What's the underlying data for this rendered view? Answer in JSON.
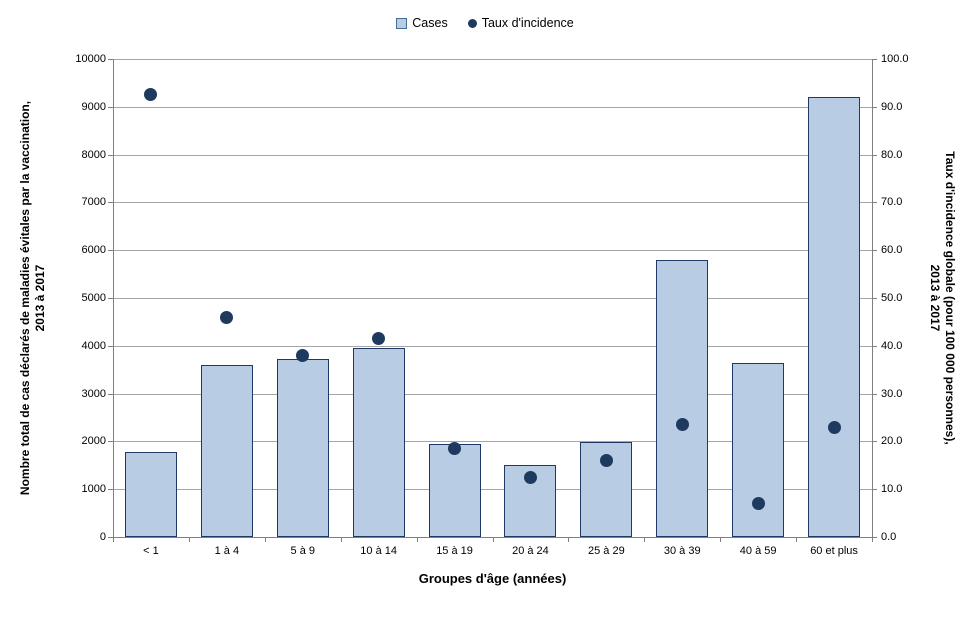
{
  "chart_data": {
    "type": "combo bar + scatter, dual y-axis",
    "categories": [
      "< 1",
      "1 à 4",
      "5 à 9",
      "10 à 14",
      "15 à 19",
      "20 à 24",
      "25 à 29",
      "30 à 39",
      "40 à 59",
      "60 et plus"
    ],
    "series": [
      {
        "name": "Cases",
        "type": "bar",
        "axis": "left",
        "values": [
          1780,
          3600,
          3720,
          3950,
          1940,
          1500,
          1980,
          5790,
          3640,
          9200
        ]
      },
      {
        "name": "Taux d'incidence",
        "type": "scatter",
        "axis": "right",
        "values": [
          92.5,
          46.0,
          38.0,
          41.5,
          18.5,
          12.5,
          16.0,
          23.5,
          7.0,
          23.0
        ]
      }
    ],
    "xlabel": "Groupes d'âge (années)",
    "ylabel_left_lines": [
      "Nombre total de cas déclarés de maladies évitales par la vaccination,",
      "2013 à 2017"
    ],
    "ylabel_right_lines": [
      "Taux d'incidence globale (pour 100 000 personnes),",
      "2013 à 2017"
    ],
    "left_axis": {
      "min": 0,
      "max": 10000,
      "ticks": [
        "0",
        "1000",
        "2000",
        "3000",
        "4000",
        "5000",
        "6000",
        "7000",
        "8000",
        "9000",
        "10000"
      ]
    },
    "right_axis": {
      "min": 0,
      "max": 100,
      "ticks": [
        "0.0",
        "10.0",
        "20.0",
        "30.0",
        "40.0",
        "50.0",
        "60.0",
        "70.0",
        "80.0",
        "90.0",
        "100.0"
      ]
    },
    "grid": "horizontal gridlines on",
    "legend_position": "top-center",
    "colors": {
      "bar_fill": "#B8CCE4",
      "bar_border": "#1F3864",
      "dot": "#1F3A5F",
      "gridline": "#A6A6A6",
      "axis": "#808080",
      "legend_square_border": "#466C94"
    }
  }
}
